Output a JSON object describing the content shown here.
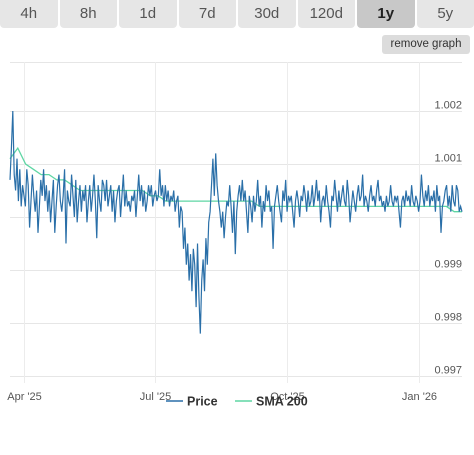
{
  "toolbar": {
    "tabs": [
      {
        "label": "4h",
        "active": false
      },
      {
        "label": "8h",
        "active": false
      },
      {
        "label": "1d",
        "active": false
      },
      {
        "label": "7d",
        "active": false
      },
      {
        "label": "30d",
        "active": false
      },
      {
        "label": "120d",
        "active": false
      },
      {
        "label": "1y",
        "active": true
      },
      {
        "label": "5y",
        "active": false
      }
    ],
    "remove_label": "remove graph"
  },
  "chart_data": {
    "type": "line",
    "title": "",
    "xlabel": "",
    "ylabel": "",
    "ylim": [
      0.997,
      1.0025
    ],
    "x_ticks": [
      "Apr '25",
      "Jul '25",
      "Oct '25",
      "Jan '26"
    ],
    "y_ticks": [
      0.997,
      0.998,
      0.999,
      1.0,
      1.001,
      1.002
    ],
    "y_tick_labels": [
      "0.997",
      "0.998",
      "0.999",
      "",
      "1.001",
      "1.002"
    ],
    "grid": true,
    "legend_position": "bottom",
    "x_start": "2025-03-22",
    "x_end": "2026-01-31",
    "colors": {
      "price": "#2a6fa8",
      "sma": "#5fd6a4"
    },
    "series": [
      {
        "name": "Price",
        "values": [
          1.0007,
          1.0013,
          1.002,
          1.0008,
          1.0005,
          1.0011,
          1.0003,
          1.0009,
          1.0002,
          1.0006,
          1.0004,
          1.0002,
          1.0009,
          1.0006,
          0.9998,
          1.0003,
          1.0008,
          1.0004,
          1.0001,
          1.0005,
          0.9997,
          1.0002,
          1.0007,
          1.0004,
          1.0009,
          1.0003,
          1.0006,
          1.0001,
          1.0005,
          0.9999,
          1.0003,
          1.0007,
          0.9997,
          1.0002,
          1.0006,
          1.0008,
          1.0003,
          1.0001,
          1.0004,
          1.0009,
          0.9995,
          1.0005,
          1.0003,
          1.0002,
          1.0008,
          1.0004,
          1.0,
          1.0007,
          0.9999,
          1.0003,
          1.0006,
          1.0001,
          1.0005,
          1.0003,
          1.0006,
          0.9999,
          1.0003,
          1.0006,
          1.0001,
          1.0004,
          1.0008,
          1.0003,
          0.9996,
          1.0006,
          1.0003,
          1.0001,
          1.0007,
          1.0006,
          1.0003,
          1.0007,
          1.0002,
          1.0004,
          1.0006,
          1.0001,
          1.0005,
          0.9999,
          1.0003,
          1.0005,
          1.0006,
          1.0,
          1.0004,
          1.0008,
          1.0002,
          1.0005,
          1.0002,
          1.0003,
          1.0001,
          1.0004,
          1.0003,
          1.0005,
          1.0,
          1.0004,
          1.0008,
          1.0003,
          1.0006,
          1.0002,
          1.0005,
          1.0001,
          1.0003,
          1.0006,
          1.0004,
          1.0006,
          1.0002,
          1.0004,
          1.0005,
          1.0003,
          1.0004,
          1.0009,
          1.0004,
          1.0006,
          1.0002,
          1.0006,
          1.0003,
          1.0005,
          1.0002,
          1.0004,
          1.0003,
          1.0005,
          1.0001,
          1.0003,
          1.0004,
          0.9998,
          1.0002,
          1.0001,
          0.9994,
          0.9998,
          0.9991,
          0.9995,
          0.9988,
          0.9993,
          0.9986,
          0.9994,
          0.9991,
          0.9983,
          0.9995,
          0.9985,
          0.9978,
          0.9988,
          0.9992,
          0.9986,
          0.9996,
          0.9991,
          0.9999,
          1.0001,
          1.0006,
          1.0011,
          1.0004,
          1.0012,
          1.0006,
          1.0003,
          1.0001,
          0.9998,
          1.0001,
          0.9996,
          1.0,
          1.0003,
          1.0002,
          1.0006,
          1.0002,
          0.9997,
          1.0003,
          0.9993,
          1.0001,
          1.0004,
          1.0006,
          1.0003,
          1.0007,
          1.0003,
          1.0005,
          1.0001,
          0.9997,
          1.0004,
          1.0002,
          0.9999,
          1.0004,
          1.0001,
          1.0003,
          1.0007,
          1.0002,
          1.0004,
          0.9998,
          1.0003,
          1.0001,
          1.0006,
          1.0003,
          1.0005,
          1.0001,
          1.0002,
          0.9994,
          1.0002,
          1.0004,
          1.0006,
          1.0003,
          1.0001,
          0.9999,
          1.0005,
          1.0003,
          1.0007,
          1.0001,
          1.0004,
          1.0003,
          1.0004,
          1.0001,
          0.9998,
          1.0003,
          1.0005,
          1.0003,
          1.0,
          1.0004,
          1.0003,
          1.0006,
          1.0004,
          1.0001,
          1.0005,
          1.0002,
          1.0003,
          1.0006,
          1.0002,
          1.0004,
          1.0007,
          1.0003,
          1.0005,
          0.9999,
          1.0003,
          1.0004,
          1.0002,
          1.0006,
          1.0003,
          1.0001,
          0.9998,
          1.0004,
          1.0003,
          1.0007,
          1.0004,
          1.0001,
          1.0005,
          1.0002,
          1.0004,
          1.0006,
          1.0003,
          1.0002,
          1.0007,
          1.0004,
          0.9999,
          1.0002,
          1.0005,
          1.0003,
          1.0001,
          1.0004,
          1.0006,
          1.0003,
          1.0004,
          1.0008,
          1.0002,
          1.0004,
          1.0003,
          1.0001,
          1.0004,
          1.0006,
          1.0003,
          1.0004,
          1.0002,
          1.0005,
          1.0007,
          1.0003,
          1.0004,
          1.0002,
          1.0003,
          1.0001,
          1.0004,
          1.0002,
          1.0003,
          1.0006,
          1.0003,
          1.0002,
          1.0004,
          1.0003,
          1.0004,
          1.0001,
          0.9998,
          1.0003,
          1.0004,
          1.0002,
          1.0005,
          1.0003,
          1.0004,
          1.0002,
          1.0006,
          1.0003,
          1.0002,
          1.0004,
          1.0003,
          1.0001,
          1.0003,
          1.0008,
          1.0004,
          1.0002,
          1.0005,
          1.0003,
          1.0006,
          1.0002,
          1.0004,
          1.0003,
          1.0005,
          1.0001,
          1.0006,
          1.0003,
          1.0004,
          0.9997,
          1.0002,
          1.0003,
          1.0005,
          1.0006,
          1.0002,
          1.0004,
          1.0001,
          1.0006,
          1.0003,
          1.0002,
          1.0006,
          1.0005,
          1.0001,
          1.0002,
          1.0001
        ]
      },
      {
        "name": "SMA 200",
        "values": [
          1.0011,
          1.0013,
          1.001,
          1.0009,
          1.0008,
          1.0008,
          1.0007,
          1.0007,
          1.0006,
          1.0005,
          1.0005,
          1.0005,
          1.0005,
          1.0005,
          1.0005,
          1.0005,
          1.0005,
          1.0005,
          1.0004,
          1.0004,
          1.0003,
          1.0003,
          1.0003,
          1.0003,
          1.0003,
          1.0003,
          1.0003,
          1.0003,
          1.0003,
          1.0003,
          1.0003,
          1.0003,
          1.0002,
          1.0002,
          1.0002,
          1.0002,
          1.0002,
          1.0002,
          1.0002,
          1.0002,
          1.0002,
          1.0002,
          1.0002,
          1.0002,
          1.0002,
          1.0002,
          1.0002,
          1.0002,
          1.0002,
          1.0002,
          1.0002,
          1.0002,
          1.0002,
          1.0002,
          1.0002,
          1.0002,
          1.0002,
          1.0001,
          1.0001
        ]
      }
    ]
  }
}
